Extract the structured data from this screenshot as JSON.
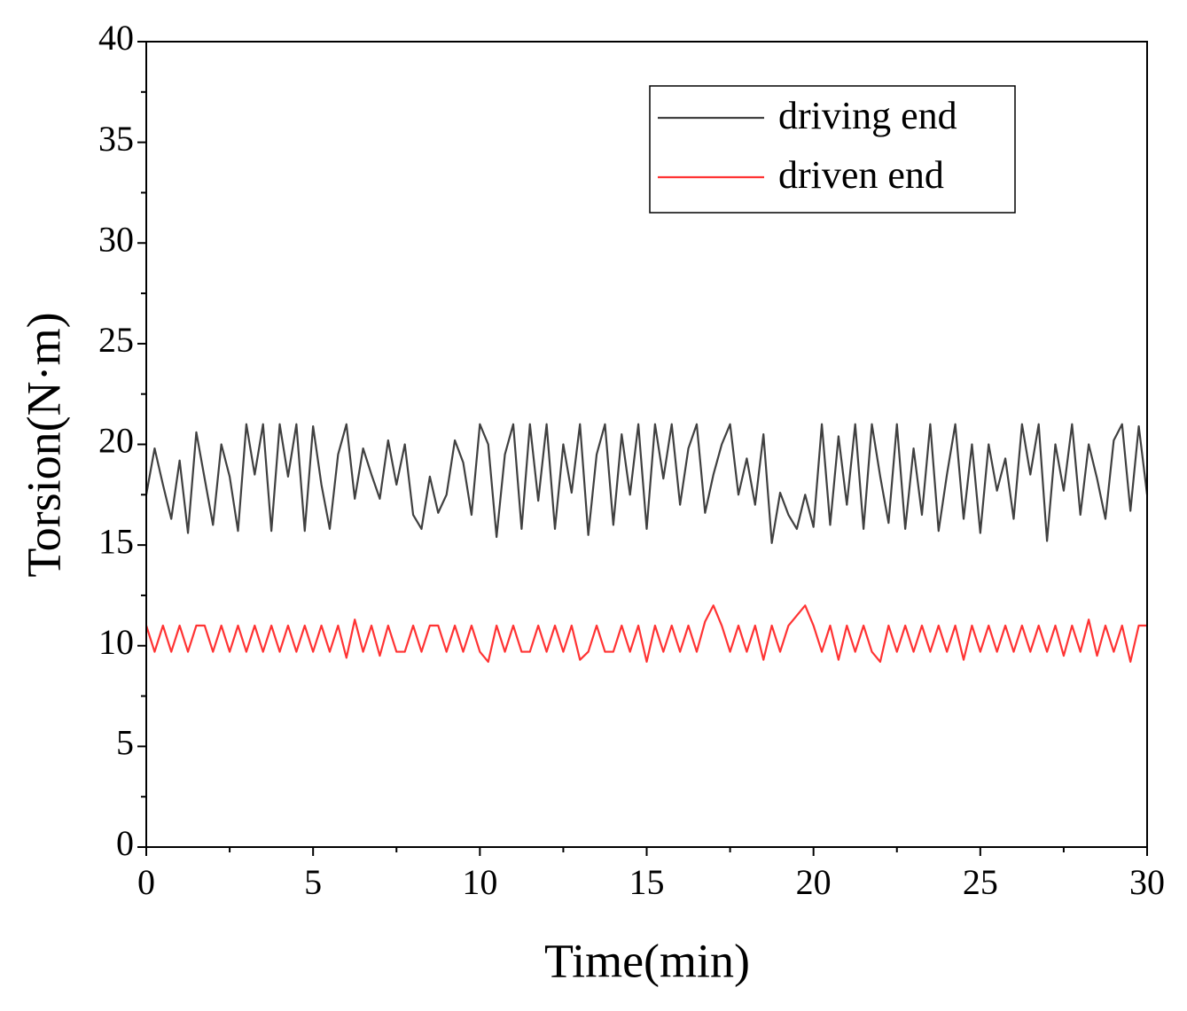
{
  "chart_data": {
    "type": "line",
    "xlabel": "Time(min)",
    "ylabel": "Torsion(N·m)",
    "xlim": [
      0,
      30
    ],
    "xticks": [
      0,
      5,
      10,
      15,
      20,
      25,
      30
    ],
    "ylim": [
      0,
      40
    ],
    "yticks": [
      0,
      5,
      10,
      15,
      20,
      25,
      30,
      35,
      40
    ],
    "legend": "upper right",
    "x": [
      0,
      0.25,
      0.5,
      0.75,
      1,
      1.25,
      1.5,
      1.75,
      2,
      2.25,
      2.5,
      2.75,
      3,
      3.25,
      3.5,
      3.75,
      4,
      4.25,
      4.5,
      4.75,
      5,
      5.25,
      5.5,
      5.75,
      6,
      6.25,
      6.5,
      6.75,
      7,
      7.25,
      7.5,
      7.75,
      8,
      8.25,
      8.5,
      8.75,
      9,
      9.25,
      9.5,
      9.75,
      10,
      10.25,
      10.5,
      10.75,
      11,
      11.25,
      11.5,
      11.75,
      12,
      12.25,
      12.5,
      12.75,
      13,
      13.25,
      13.5,
      13.75,
      14,
      14.25,
      14.5,
      14.75,
      15,
      15.25,
      15.5,
      15.75,
      16,
      16.25,
      16.5,
      16.75,
      17,
      17.25,
      17.5,
      17.75,
      18,
      18.25,
      18.5,
      18.75,
      19,
      19.25,
      19.5,
      19.75,
      20,
      20.25,
      20.5,
      20.75,
      21,
      21.25,
      21.5,
      21.75,
      22,
      22.25,
      22.5,
      22.75,
      23,
      23.25,
      23.5,
      23.75,
      24,
      24.25,
      24.5,
      24.75,
      25,
      25.25,
      25.5,
      25.75,
      26,
      26.25,
      26.5,
      26.75,
      27,
      27.25,
      27.5,
      27.75,
      28,
      28.25,
      28.5,
      28.75,
      29,
      29.25,
      29.5,
      29.75,
      30
    ],
    "series": [
      {
        "name": "driving end",
        "color": "#404040",
        "values": [
          17.5,
          19.8,
          18,
          16.3,
          19.2,
          15.6,
          20.6,
          18.3,
          16,
          20,
          18.4,
          15.7,
          21,
          18.5,
          21,
          15.7,
          21,
          18.4,
          21,
          15.7,
          20.9,
          18,
          15.8,
          19.5,
          21,
          17.3,
          19.8,
          18.5,
          17.3,
          20.2,
          18,
          20,
          16.5,
          15.8,
          18.4,
          16.6,
          17.5,
          20.2,
          19.1,
          16.5,
          21,
          20,
          15.4,
          19.5,
          21,
          15.8,
          21,
          17.2,
          21,
          15.8,
          20,
          17.6,
          21,
          15.5,
          19.5,
          21,
          16,
          20.5,
          17.5,
          21,
          15.8,
          21,
          18.3,
          21,
          17,
          19.8,
          21,
          16.6,
          18.5,
          20,
          21,
          17.5,
          19.3,
          17,
          20.5,
          15.1,
          17.6,
          16.5,
          15.8,
          17.5,
          15.9,
          21,
          16,
          20.4,
          17,
          21,
          15.8,
          21,
          18.4,
          16.1,
          21,
          15.8,
          19.8,
          16.5,
          21,
          15.7,
          18.5,
          21,
          16.3,
          20,
          15.6,
          20,
          17.7,
          19.3,
          16.3,
          21,
          18.5,
          21,
          15.2,
          20,
          17.7,
          21,
          16.5,
          20,
          18.3,
          16.3,
          20.2,
          21,
          16.7,
          20.9,
          17.5
        ]
      },
      {
        "name": "driven end",
        "color": "#ff3333",
        "values": [
          11,
          9.7,
          11,
          9.7,
          11,
          9.7,
          11,
          11,
          9.7,
          11,
          9.7,
          11,
          9.7,
          11,
          9.7,
          11,
          9.7,
          11,
          9.7,
          11,
          9.7,
          11,
          9.7,
          11,
          9.4,
          11.3,
          9.7,
          11,
          9.5,
          11,
          9.7,
          9.7,
          11,
          9.7,
          11,
          11,
          9.7,
          11,
          9.7,
          11,
          9.7,
          9.2,
          11,
          9.7,
          11,
          9.7,
          9.7,
          11,
          9.7,
          11,
          9.7,
          11,
          9.3,
          9.7,
          11,
          9.7,
          9.7,
          11,
          9.7,
          11,
          9.2,
          11,
          9.7,
          11,
          9.7,
          11,
          9.7,
          11.2,
          12,
          11,
          9.7,
          11,
          9.7,
          11,
          9.3,
          11,
          9.7,
          11,
          11.5,
          12,
          11,
          9.7,
          11,
          9.3,
          11,
          9.7,
          11,
          9.7,
          9.2,
          11,
          9.7,
          11,
          9.7,
          11,
          9.7,
          11,
          9.7,
          11,
          9.3,
          11,
          9.7,
          11,
          9.7,
          11,
          9.7,
          11,
          9.7,
          11,
          9.7,
          11,
          9.5,
          11,
          9.7,
          11.3,
          9.5,
          11,
          9.7,
          11,
          9.2,
          11,
          11
        ]
      }
    ]
  }
}
